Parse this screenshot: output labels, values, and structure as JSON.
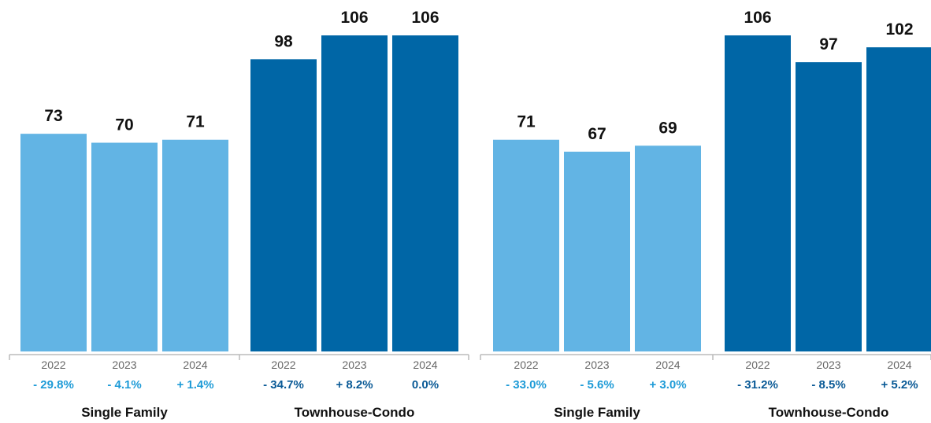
{
  "chart_data": [
    {
      "type": "bar",
      "groups": [
        {
          "name": "Single Family",
          "color": "#62B4E4",
          "change_color": "#1E9BD7",
          "categories": [
            "2022",
            "2023",
            "2024"
          ],
          "values": [
            73,
            70,
            71
          ],
          "changes": [
            "- 29.8%",
            "- 4.1%",
            "+ 1.4%"
          ]
        },
        {
          "name": "Townhouse-Condo",
          "color": "#0066A6",
          "change_color": "#0A5A96",
          "categories": [
            "2022",
            "2023",
            "2024"
          ],
          "values": [
            98,
            106,
            106
          ],
          "changes": [
            "- 34.7%",
            "+ 8.2%",
            "0.0%"
          ]
        }
      ],
      "ylim": [
        0,
        106
      ]
    },
    {
      "type": "bar",
      "groups": [
        {
          "name": "Single Family",
          "color": "#62B4E4",
          "change_color": "#1E9BD7",
          "categories": [
            "2022",
            "2023",
            "2024"
          ],
          "values": [
            71,
            67,
            69
          ],
          "changes": [
            "- 33.0%",
            "- 5.6%",
            "+ 3.0%"
          ]
        },
        {
          "name": "Townhouse-Condo",
          "color": "#0066A6",
          "change_color": "#0A5A96",
          "categories": [
            "2022",
            "2023",
            "2024"
          ],
          "values": [
            106,
            97,
            102
          ],
          "changes": [
            "- 31.2%",
            "- 8.5%",
            "+ 5.2%"
          ]
        }
      ],
      "ylim": [
        0,
        106
      ]
    }
  ],
  "colors": {
    "axis": "#bbbbbb",
    "value_text": "#111111",
    "year_text": "#666666"
  }
}
